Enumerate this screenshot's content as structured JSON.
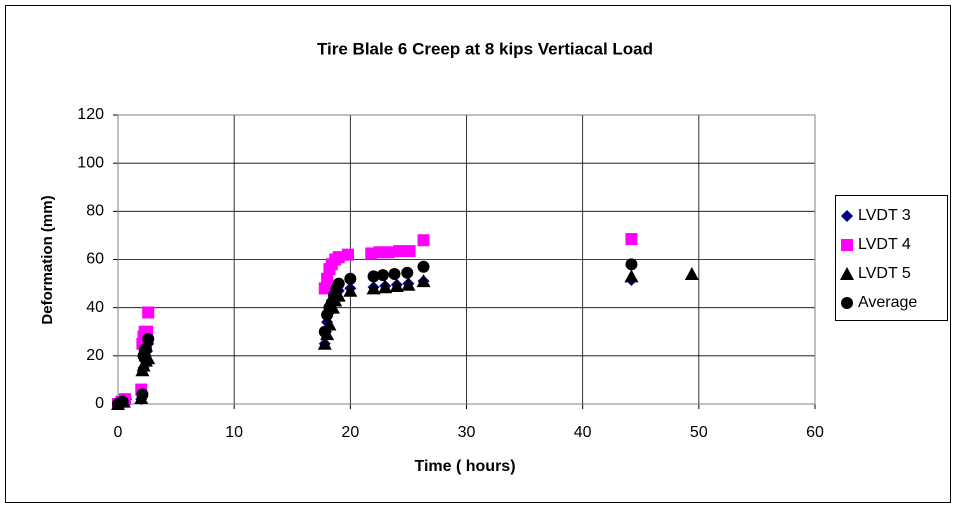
{
  "chart_data": {
    "type": "scatter",
    "title": "Tire Blale 6 Creep at 8 kips Vertiacal Load",
    "x_label": "Time ( hours)",
    "y_label": "Deformation (mm)",
    "xlim": [
      0,
      60
    ],
    "xticks": [
      0,
      10,
      20,
      30,
      40,
      50,
      60
    ],
    "ylim": [
      0,
      120
    ],
    "yticks": [
      0,
      20,
      40,
      60,
      80,
      100,
      120
    ],
    "grid": true,
    "legend": "right",
    "series": [
      {
        "name": "LVDT 3",
        "color": "#000080",
        "marker": "diamond",
        "x": [
          0,
          0.2,
          0.5,
          0.7,
          2,
          2.1,
          2.2,
          2.3,
          2.4,
          2.5,
          2.6,
          17.8,
          17.9,
          18,
          18.2,
          18.4,
          18.6,
          18.8,
          19,
          20,
          22,
          23,
          24,
          25,
          26.3,
          44.2
        ],
        "values": [
          0,
          0.5,
          1,
          2,
          2,
          3,
          15,
          18,
          20,
          22,
          25,
          25,
          30,
          34,
          38,
          42,
          44,
          46,
          47,
          48,
          48.5,
          49,
          49.5,
          50,
          51,
          51.5
        ]
      },
      {
        "name": "LVDT 4",
        "color": "#ff00ff",
        "marker": "square",
        "x": [
          0,
          0.3,
          0.6,
          2,
          2.1,
          2.2,
          2.3,
          2.5,
          2.6,
          17.8,
          18,
          18.2,
          18.4,
          18.7,
          19,
          19.8,
          21.8,
          22.5,
          23.3,
          24.2,
          25.1,
          26.3,
          44.2
        ],
        "values": [
          0,
          1,
          2,
          6,
          25,
          28,
          30,
          30,
          38,
          48,
          52,
          56,
          58,
          60,
          61,
          62,
          62.5,
          63,
          63,
          63.5,
          63.5,
          68,
          68.5
        ]
      },
      {
        "name": "LVDT 5",
        "color": "#000000",
        "marker": "triangle",
        "x": [
          0,
          0.5,
          2,
          2.1,
          2.2,
          2.4,
          2.6,
          17.8,
          18,
          18.2,
          18.5,
          18.7,
          19,
          20,
          22,
          23,
          24,
          25,
          26.3,
          44.2,
          49.4
        ],
        "values": [
          0,
          1,
          2.5,
          14,
          16,
          18,
          19,
          25,
          29,
          33,
          40,
          43,
          45,
          47,
          48,
          48.5,
          49,
          49.5,
          51,
          53,
          54
        ]
      },
      {
        "name": "Average",
        "color": "#000000",
        "marker": "circle",
        "x": [
          0,
          0.4,
          2.1,
          2.2,
          2.3,
          2.4,
          2.6,
          17.8,
          18,
          18.2,
          18.4,
          18.6,
          18.8,
          19,
          20,
          22,
          22.8,
          23.8,
          24.9,
          26.3,
          44.2
        ],
        "values": [
          0,
          1,
          4,
          20,
          22,
          23,
          27,
          30,
          37,
          40,
          42,
          45,
          48,
          50,
          52,
          53,
          53.5,
          54,
          54.5,
          57,
          58
        ]
      }
    ]
  }
}
